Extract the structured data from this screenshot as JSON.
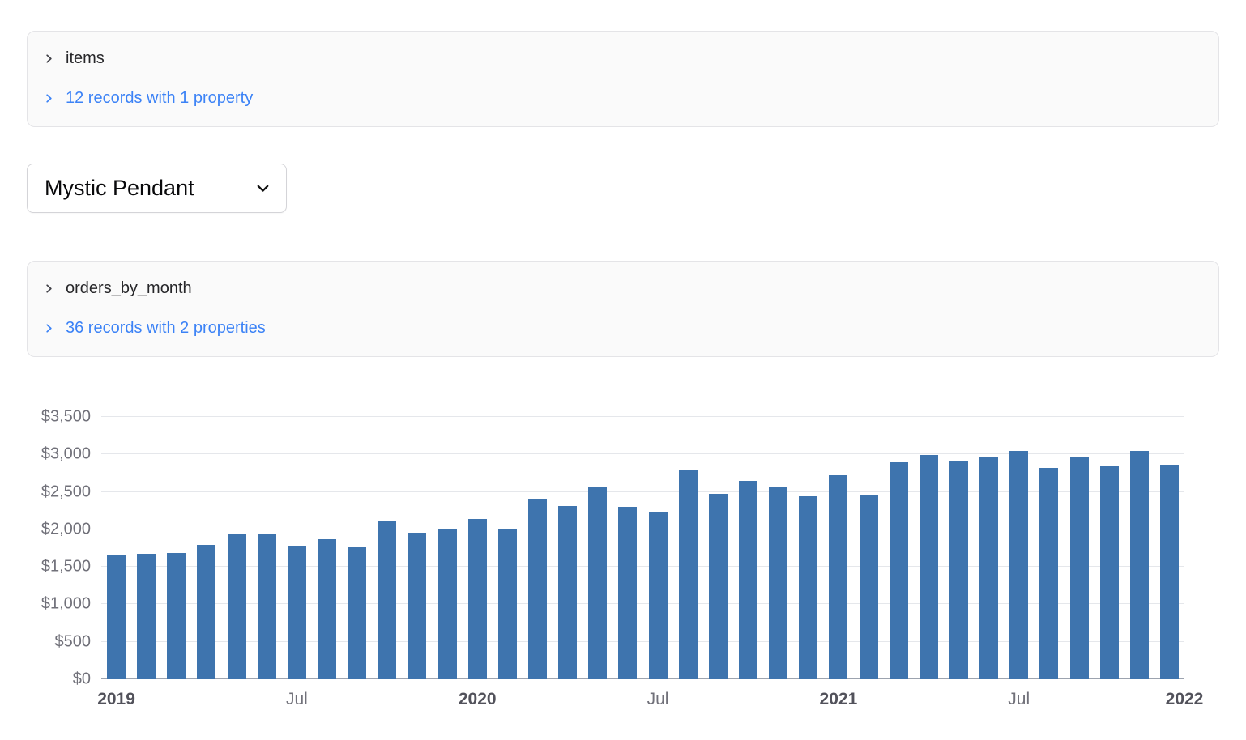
{
  "items_panel": {
    "title": "items",
    "summary": "12 records with 1 property"
  },
  "orders_panel": {
    "title": "orders_by_month",
    "summary": "36 records with 2 properties"
  },
  "select": {
    "value": "Mystic Pendant"
  },
  "colors": {
    "accent_link": "#3b82f6",
    "bar": "#3e74ae"
  },
  "icons": {
    "panel_expand": "chevron-right-icon",
    "records_expand": "chevron-right-icon",
    "select_caret": "chevron-down-icon"
  },
  "chart_data": {
    "type": "bar",
    "title": "",
    "xlabel": "",
    "ylabel": "",
    "ylim": [
      0,
      3500
    ],
    "grid": true,
    "legend": false,
    "x": [
      "2019-01",
      "2019-02",
      "2019-03",
      "2019-04",
      "2019-05",
      "2019-06",
      "2019-07",
      "2019-08",
      "2019-09",
      "2019-10",
      "2019-11",
      "2019-12",
      "2020-01",
      "2020-02",
      "2020-03",
      "2020-04",
      "2020-05",
      "2020-06",
      "2020-07",
      "2020-08",
      "2020-09",
      "2020-10",
      "2020-11",
      "2020-12",
      "2021-01",
      "2021-02",
      "2021-03",
      "2021-04",
      "2021-05",
      "2021-06",
      "2021-07",
      "2021-08",
      "2021-09",
      "2021-10",
      "2021-11",
      "2021-12"
    ],
    "values": [
      1660,
      1670,
      1690,
      1790,
      1930,
      1930,
      1770,
      1870,
      1760,
      2110,
      1960,
      2010,
      2140,
      2000,
      2410,
      2310,
      2570,
      2300,
      2230,
      2790,
      2470,
      2650,
      2560,
      2440,
      2720,
      2450,
      2890,
      2990,
      2920,
      2970,
      3050,
      2820,
      2960,
      2840,
      3050,
      2860
    ],
    "y_ticks": [
      {
        "value": 0,
        "label": "$0"
      },
      {
        "value": 500,
        "label": "$500"
      },
      {
        "value": 1000,
        "label": "$1,000"
      },
      {
        "value": 1500,
        "label": "$1,500"
      },
      {
        "value": 2000,
        "label": "$2,000"
      },
      {
        "value": 2500,
        "label": "$2,500"
      },
      {
        "value": 3000,
        "label": "$3,000"
      },
      {
        "value": 3500,
        "label": "$3,500"
      }
    ],
    "x_ticks": [
      {
        "label": "2019",
        "slot": 0,
        "emphasis": true
      },
      {
        "label": "Jul",
        "slot": 6,
        "emphasis": false
      },
      {
        "label": "2020",
        "slot": 12,
        "emphasis": true
      },
      {
        "label": "Jul",
        "slot": 18,
        "emphasis": false
      },
      {
        "label": "2021",
        "slot": 24,
        "emphasis": true
      },
      {
        "label": "Jul",
        "slot": 30,
        "emphasis": false
      },
      {
        "label": "2022",
        "slot": 36,
        "emphasis": true
      }
    ]
  }
}
